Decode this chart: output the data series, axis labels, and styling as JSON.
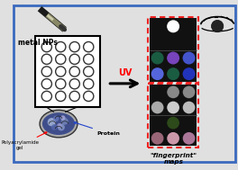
{
  "bg_color": "#e0e0e0",
  "border_color": "#3a6abf",
  "uv_color": "red",
  "uv_text": "UV",
  "metal_nps_label": "metal NPs",
  "polyacrylamide_label": "Polyacrylamide\ngel",
  "protein_label": "Protein",
  "fingerprint_label": "\"fingerprint\"\nmaps",
  "plate1_colors": [
    [
      "#111111",
      "#ffffff",
      "#111111"
    ],
    [
      "#111111",
      "#111111",
      "#111111"
    ],
    [
      "#1a5c42",
      "#7744bb",
      "#4455cc"
    ],
    [
      "#5566dd",
      "#1a5c42",
      "#2233bb"
    ]
  ],
  "plate2_colors": [
    [
      "#111111",
      "#888888",
      "#888888"
    ],
    [
      "#aaaaaa",
      "#cccccc",
      "#bbbbbb"
    ],
    [
      "#111111",
      "#2d4a1a",
      "#111111"
    ],
    [
      "#996677",
      "#cc99aa",
      "#aa7799"
    ]
  ],
  "red_border": "#ee2222",
  "grid_rows": 5,
  "grid_cols": 4
}
